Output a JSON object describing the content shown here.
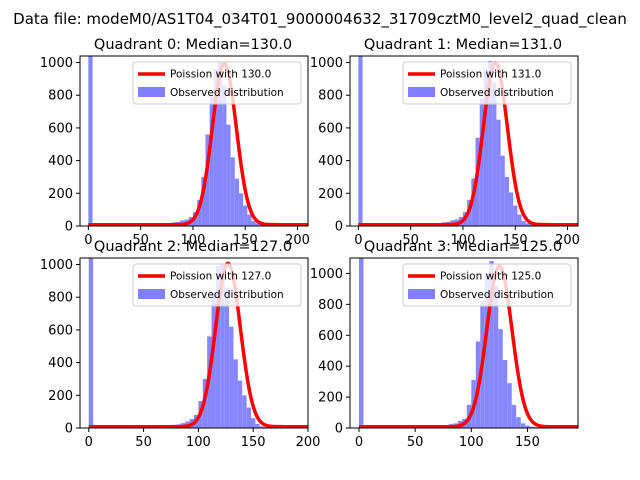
{
  "figure_title": "Data file: modeM0/AS1T04_034T01_9000004632_31709cztM0_level2_quad_clean",
  "chart_data": [
    {
      "type": "bar",
      "title": "Quadrant 0: Median=130.0",
      "median": 130.0,
      "xlim": [
        -8,
        210
      ],
      "ylim": [
        0,
        1040
      ],
      "xticks": [
        0,
        50,
        100,
        150,
        200
      ],
      "yticks": [
        0,
        200,
        400,
        600,
        800,
        1000
      ],
      "zero_bin": {
        "start": 0,
        "end": 4,
        "count": 1040
      },
      "hist_start": 0,
      "bin_width": 4,
      "hist_counts": [
        1040,
        12,
        12,
        12,
        12,
        12,
        12,
        12,
        12,
        12,
        12,
        12,
        12,
        12,
        12,
        12,
        12,
        12,
        12,
        12,
        22,
        25,
        35,
        40,
        55,
        85,
        160,
        300,
        560,
        790,
        960,
        1000,
        860,
        620,
        420,
        290,
        200,
        125,
        70,
        30,
        16,
        10,
        6,
        4,
        3,
        2,
        1,
        1,
        0,
        0
      ],
      "series": [
        {
          "name": "Poission with 130.0",
          "color": "#ff0000",
          "mean": 130.0,
          "peak": 985
        },
        {
          "name": "Observed distribution",
          "color": "#8080ff"
        }
      ]
    },
    {
      "type": "bar",
      "title": "Quadrant 1: Median=131.0",
      "median": 131.0,
      "xlim": [
        -8,
        210
      ],
      "ylim": [
        0,
        1040
      ],
      "xticks": [
        0,
        50,
        100,
        150,
        200
      ],
      "yticks": [
        0,
        200,
        400,
        600,
        800,
        1000
      ],
      "zero_bin": {
        "start": 0,
        "end": 4,
        "count": 1040
      },
      "hist_start": 0,
      "bin_width": 4,
      "hist_counts": [
        1040,
        12,
        12,
        12,
        12,
        12,
        12,
        12,
        12,
        12,
        12,
        12,
        12,
        12,
        12,
        12,
        12,
        12,
        12,
        12,
        22,
        25,
        35,
        40,
        55,
        85,
        160,
        290,
        540,
        780,
        960,
        1010,
        880,
        650,
        430,
        300,
        205,
        125,
        70,
        30,
        16,
        10,
        6,
        4,
        3,
        2,
        1,
        1,
        0,
        0
      ],
      "series": [
        {
          "name": "Poission with 131.0",
          "color": "#ff0000",
          "mean": 131.0,
          "peak": 990
        },
        {
          "name": "Observed distribution",
          "color": "#8080ff"
        }
      ]
    },
    {
      "type": "bar",
      "title": "Quadrant 2: Median=127.0",
      "median": 127.0,
      "xlim": [
        -8,
        200
      ],
      "ylim": [
        0,
        1040
      ],
      "xticks": [
        0,
        50,
        100,
        150,
        200
      ],
      "yticks": [
        0,
        200,
        400,
        600,
        800,
        1000
      ],
      "zero_bin": {
        "start": 0,
        "end": 4,
        "count": 1040
      },
      "hist_start": 0,
      "bin_width": 4,
      "hist_counts": [
        1040,
        12,
        12,
        12,
        12,
        12,
        12,
        12,
        12,
        12,
        12,
        12,
        12,
        12,
        12,
        12,
        12,
        12,
        12,
        12,
        22,
        30,
        40,
        55,
        80,
        165,
        300,
        560,
        830,
        990,
        1000,
        860,
        620,
        420,
        290,
        200,
        125,
        60,
        25,
        10,
        6,
        3,
        1,
        1,
        0,
        0,
        0,
        0
      ],
      "series": [
        {
          "name": "Poission with 127.0",
          "color": "#ff0000",
          "mean": 127.0,
          "peak": 1000
        },
        {
          "name": "Observed distribution",
          "color": "#8080ff"
        }
      ]
    },
    {
      "type": "bar",
      "title": "Quadrant 3: Median=125.0",
      "median": 125.0,
      "xlim": [
        -8,
        195
      ],
      "ylim": [
        0,
        1100
      ],
      "xticks": [
        0,
        50,
        100,
        150
      ],
      "yticks": [
        0,
        200,
        400,
        600,
        800,
        1000
      ],
      "zero_bin": {
        "start": 0,
        "end": 4,
        "count": 1100
      },
      "hist_start": 0,
      "bin_width": 4,
      "hist_counts": [
        1100,
        12,
        12,
        12,
        12,
        12,
        12,
        12,
        12,
        12,
        12,
        12,
        12,
        12,
        12,
        12,
        12,
        12,
        12,
        12,
        25,
        30,
        45,
        60,
        150,
        310,
        560,
        820,
        1000,
        1080,
        920,
        640,
        440,
        290,
        150,
        70,
        30,
        16,
        8,
        5,
        3,
        2,
        1,
        1,
        0,
        0,
        0
      ],
      "series": [
        {
          "name": "Poission with 125.0",
          "color": "#ff0000",
          "mean": 125.0,
          "peak": 1040
        },
        {
          "name": "Observed distribution",
          "color": "#8080ff"
        }
      ]
    }
  ]
}
